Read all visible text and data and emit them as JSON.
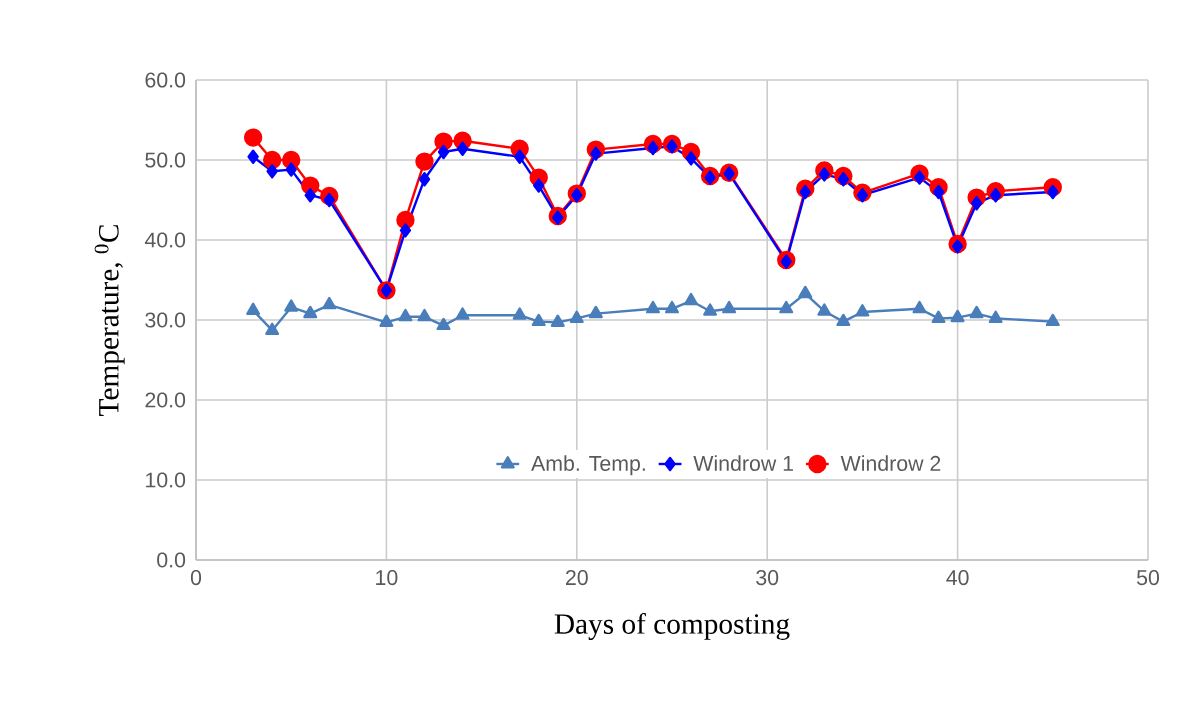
{
  "chart_data": {
    "type": "line",
    "xlabel": "Days of composting",
    "ylabel": "Temperature, $^{0}$C",
    "x": [
      3,
      4,
      5,
      6,
      7,
      10,
      11,
      12,
      13,
      14,
      17,
      18,
      19,
      20,
      21,
      24,
      25,
      26,
      27,
      28,
      31,
      32,
      33,
      34,
      35,
      38,
      39,
      40,
      41,
      42,
      45
    ],
    "series": [
      {
        "name": "Amb. Temp.",
        "color": "#4a7ebb",
        "marker": "triangle",
        "values": [
          31.2,
          28.7,
          31.6,
          30.8,
          31.9,
          29.7,
          30.4,
          30.4,
          29.3,
          30.6,
          30.6,
          29.8,
          29.7,
          30.2,
          30.8,
          31.4,
          31.4,
          32.4,
          31.1,
          31.4,
          31.4,
          33.3,
          31.1,
          29.8,
          31.0,
          31.4,
          30.2,
          30.3,
          30.8,
          30.2,
          29.8
        ]
      },
      {
        "name": "Windrow 1",
        "color": "#0000ff",
        "marker": "diamond",
        "values": [
          50.4,
          48.6,
          48.8,
          45.6,
          45.0,
          33.7,
          41.2,
          47.6,
          51.0,
          51.4,
          50.4,
          46.8,
          42.8,
          45.6,
          50.8,
          51.5,
          51.7,
          50.2,
          47.8,
          48.3,
          37.3,
          46.0,
          48.2,
          47.6,
          45.6,
          47.8,
          46.0,
          39.2,
          44.6,
          45.6,
          46.0
        ]
      },
      {
        "name": "Windrow 2",
        "color": "#ff0000",
        "marker": "circle",
        "values": [
          52.8,
          50.0,
          50.0,
          46.8,
          45.5,
          33.7,
          42.5,
          49.8,
          52.3,
          52.4,
          51.4,
          47.8,
          43.0,
          45.8,
          51.3,
          52.0,
          52.0,
          51.0,
          48.0,
          48.4,
          37.5,
          46.4,
          48.7,
          48.0,
          45.9,
          48.3,
          46.6,
          39.5,
          45.3,
          46.1,
          46.6
        ]
      }
    ],
    "xlim": [
      0,
      50
    ],
    "xticks": [
      0,
      10,
      20,
      30,
      40,
      50
    ],
    "ylim": [
      0,
      60
    ],
    "yticks": [
      {
        "value": 0,
        "label": "0.0"
      },
      {
        "value": 10,
        "label": "10.0"
      },
      {
        "value": 20,
        "label": "20.0"
      },
      {
        "value": 30,
        "label": "30.0"
      },
      {
        "value": 40,
        "label": "40.0"
      },
      {
        "value": 50,
        "label": "50.0"
      },
      {
        "value": 60,
        "label": "60.0"
      }
    ],
    "grid": true,
    "legend": "bottom",
    "line_style": "solid"
  }
}
